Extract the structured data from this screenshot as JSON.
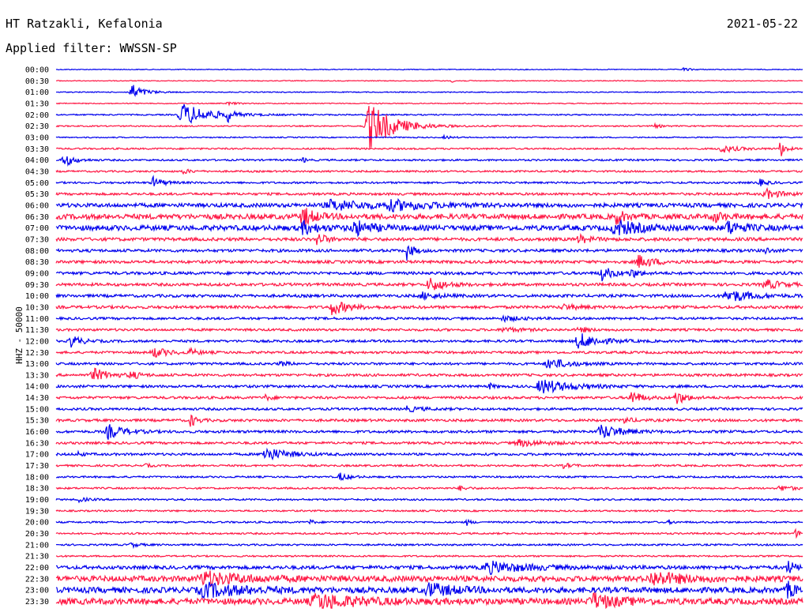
{
  "header": {
    "station": "HT Ratzakli, Kefalonia",
    "date": "2021-05-22",
    "filter": "Applied filter: WWSSN-SP"
  },
  "chart_data": {
    "type": "line",
    "title": "HT Ratzakli, Kefalonia",
    "date": "2021-05-22",
    "filter": "WWSSN-SP",
    "ylabel": "HHZ - 50000",
    "xlabel": "",
    "trace_minutes": 30,
    "colors": [
      "#0000ee",
      "#ff1744"
    ],
    "rows": [
      {
        "label": "00:00",
        "noise": 0.5,
        "events": [
          [
            0.84,
            2,
            0.01
          ]
        ]
      },
      {
        "label": "00:30",
        "noise": 0.5,
        "events": [
          [
            0.53,
            1.5,
            0.01
          ]
        ]
      },
      {
        "label": "01:00",
        "noise": 0.6,
        "events": [
          [
            0.1,
            11,
            0.015
          ]
        ]
      },
      {
        "label": "01:30",
        "noise": 0.6,
        "events": [
          [
            0.23,
            2,
            0.01
          ]
        ]
      },
      {
        "label": "02:00",
        "noise": 0.8,
        "events": [
          [
            0.17,
            14,
            0.035
          ],
          [
            0.23,
            8,
            0.005
          ]
        ]
      },
      {
        "label": "02:30",
        "noise": 0.8,
        "events": [
          [
            0.42,
            30,
            0.03
          ],
          [
            0.8,
            2.5,
            0.01
          ]
        ]
      },
      {
        "label": "03:00",
        "noise": 0.7,
        "events": [
          [
            0.52,
            2,
            0.01
          ]
        ]
      },
      {
        "label": "03:30",
        "noise": 1.0,
        "events": [
          [
            0.89,
            5,
            0.02
          ],
          [
            0.97,
            12,
            0.006
          ]
        ]
      },
      {
        "label": "04:00",
        "noise": 1.1,
        "events": [
          [
            0.01,
            9,
            0.012
          ],
          [
            0.33,
            4,
            0.004
          ]
        ]
      },
      {
        "label": "04:30",
        "noise": 1.1,
        "events": [
          [
            0.17,
            3,
            0.01
          ]
        ]
      },
      {
        "label": "05:00",
        "noise": 1.2,
        "events": [
          [
            0.13,
            7,
            0.012
          ],
          [
            0.94,
            5,
            0.01
          ]
        ]
      },
      {
        "label": "05:30",
        "noise": 1.5,
        "events": [
          [
            0.95,
            6,
            0.02
          ]
        ]
      },
      {
        "label": "06:00",
        "noise": 2.5,
        "events": [
          [
            0.37,
            6,
            0.05
          ],
          [
            0.45,
            5,
            0.05
          ]
        ]
      },
      {
        "label": "06:30",
        "noise": 3.2,
        "events": [
          [
            0.33,
            12,
            0.015
          ],
          [
            0.75,
            10,
            0.01
          ],
          [
            0.88,
            8,
            0.01
          ]
        ]
      },
      {
        "label": "07:00",
        "noise": 3.2,
        "events": [
          [
            0.33,
            7,
            0.02
          ],
          [
            0.4,
            9,
            0.02
          ],
          [
            0.75,
            9,
            0.03
          ],
          [
            0.9,
            8,
            0.02
          ]
        ]
      },
      {
        "label": "07:30",
        "noise": 2.0,
        "events": [
          [
            0.35,
            9,
            0.01
          ],
          [
            0.7,
            5,
            0.015
          ]
        ]
      },
      {
        "label": "08:00",
        "noise": 1.8,
        "events": [
          [
            0.47,
            11,
            0.008
          ],
          [
            0.95,
            5,
            0.005
          ]
        ]
      },
      {
        "label": "08:30",
        "noise": 1.8,
        "events": [
          [
            0.78,
            8,
            0.02
          ]
        ]
      },
      {
        "label": "09:00",
        "noise": 1.8,
        "events": [
          [
            0.73,
            9,
            0.015
          ],
          [
            0.77,
            5,
            0.01
          ]
        ]
      },
      {
        "label": "09:30",
        "noise": 1.8,
        "events": [
          [
            0.5,
            9,
            0.018
          ],
          [
            0.95,
            6,
            0.02
          ]
        ]
      },
      {
        "label": "10:00",
        "noise": 1.8,
        "events": [
          [
            0.9,
            8,
            0.03
          ],
          [
            0.49,
            4,
            0.02
          ]
        ]
      },
      {
        "label": "10:30",
        "noise": 1.8,
        "events": [
          [
            0.37,
            9,
            0.02
          ],
          [
            0.68,
            3,
            0.02
          ]
        ]
      },
      {
        "label": "11:00",
        "noise": 1.5,
        "events": [
          [
            0.6,
            3,
            0.02
          ]
        ]
      },
      {
        "label": "11:30",
        "noise": 1.5,
        "events": [
          [
            0.6,
            3,
            0.02
          ],
          [
            0.7,
            4,
            0.01
          ]
        ]
      },
      {
        "label": "12:00",
        "noise": 1.5,
        "events": [
          [
            0.02,
            8,
            0.012
          ],
          [
            0.7,
            10,
            0.025
          ]
        ]
      },
      {
        "label": "12:30",
        "noise": 1.5,
        "events": [
          [
            0.13,
            6,
            0.02
          ],
          [
            0.18,
            4,
            0.01
          ]
        ]
      },
      {
        "label": "13:00",
        "noise": 1.5,
        "events": [
          [
            0.66,
            7,
            0.025
          ],
          [
            0.3,
            3,
            0.01
          ]
        ]
      },
      {
        "label": "13:30",
        "noise": 1.6,
        "events": [
          [
            0.05,
            8,
            0.02
          ],
          [
            0.1,
            5,
            0.01
          ]
        ]
      },
      {
        "label": "14:00",
        "noise": 1.6,
        "events": [
          [
            0.65,
            9,
            0.035
          ],
          [
            0.58,
            4,
            0.005
          ]
        ]
      },
      {
        "label": "14:30",
        "noise": 1.6,
        "events": [
          [
            0.77,
            10,
            0.012
          ],
          [
            0.83,
            9,
            0.012
          ],
          [
            0.28,
            3,
            0.01
          ]
        ]
      },
      {
        "label": "15:00",
        "noise": 1.5,
        "events": [
          [
            0.47,
            3,
            0.02
          ]
        ]
      },
      {
        "label": "15:30",
        "noise": 1.6,
        "events": [
          [
            0.18,
            8,
            0.008
          ],
          [
            0.76,
            4,
            0.01
          ]
        ]
      },
      {
        "label": "16:00",
        "noise": 1.6,
        "events": [
          [
            0.07,
            9,
            0.02
          ],
          [
            0.73,
            9,
            0.025
          ]
        ]
      },
      {
        "label": "16:30",
        "noise": 1.5,
        "events": [
          [
            0.62,
            4,
            0.03
          ]
        ]
      },
      {
        "label": "17:00",
        "noise": 1.5,
        "events": [
          [
            0.28,
            9,
            0.025
          ],
          [
            0.03,
            4,
            0.005
          ]
        ]
      },
      {
        "label": "17:30",
        "noise": 1.2,
        "events": [
          [
            0.68,
            3,
            0.01
          ],
          [
            0.12,
            3,
            0.005
          ]
        ]
      },
      {
        "label": "18:00",
        "noise": 1.1,
        "events": [
          [
            0.38,
            5,
            0.012
          ]
        ]
      },
      {
        "label": "18:30",
        "noise": 1.1,
        "events": [
          [
            0.54,
            3,
            0.01
          ],
          [
            0.97,
            3,
            0.02
          ]
        ]
      },
      {
        "label": "19:00",
        "noise": 1.1,
        "events": [
          [
            0.03,
            3,
            0.01
          ]
        ]
      },
      {
        "label": "19:30",
        "noise": 1.0,
        "events": []
      },
      {
        "label": "20:00",
        "noise": 1.1,
        "events": [
          [
            0.34,
            4,
            0.004
          ],
          [
            0.55,
            4,
            0.005
          ],
          [
            0.82,
            3,
            0.005
          ]
        ]
      },
      {
        "label": "20:30",
        "noise": 1.1,
        "events": [
          [
            0.99,
            6,
            0.005
          ]
        ]
      },
      {
        "label": "21:00",
        "noise": 1.1,
        "events": [
          [
            0.1,
            3,
            0.01
          ]
        ]
      },
      {
        "label": "21:30",
        "noise": 1.0,
        "events": []
      },
      {
        "label": "22:00",
        "noise": 2.2,
        "events": [
          [
            0.58,
            7,
            0.05
          ],
          [
            0.98,
            8,
            0.01
          ]
        ]
      },
      {
        "label": "22:30",
        "noise": 3.5,
        "events": [
          [
            0.2,
            8,
            0.05
          ],
          [
            0.8,
            8,
            0.04
          ]
        ]
      },
      {
        "label": "23:00",
        "noise": 3.5,
        "events": [
          [
            0.2,
            8,
            0.05
          ],
          [
            0.5,
            8,
            0.03
          ],
          [
            0.98,
            10,
            0.01
          ]
        ]
      },
      {
        "label": "23:30",
        "noise": 3.8,
        "events": [
          [
            0.35,
            9,
            0.05
          ],
          [
            0.72,
            9,
            0.03
          ]
        ]
      }
    ]
  }
}
